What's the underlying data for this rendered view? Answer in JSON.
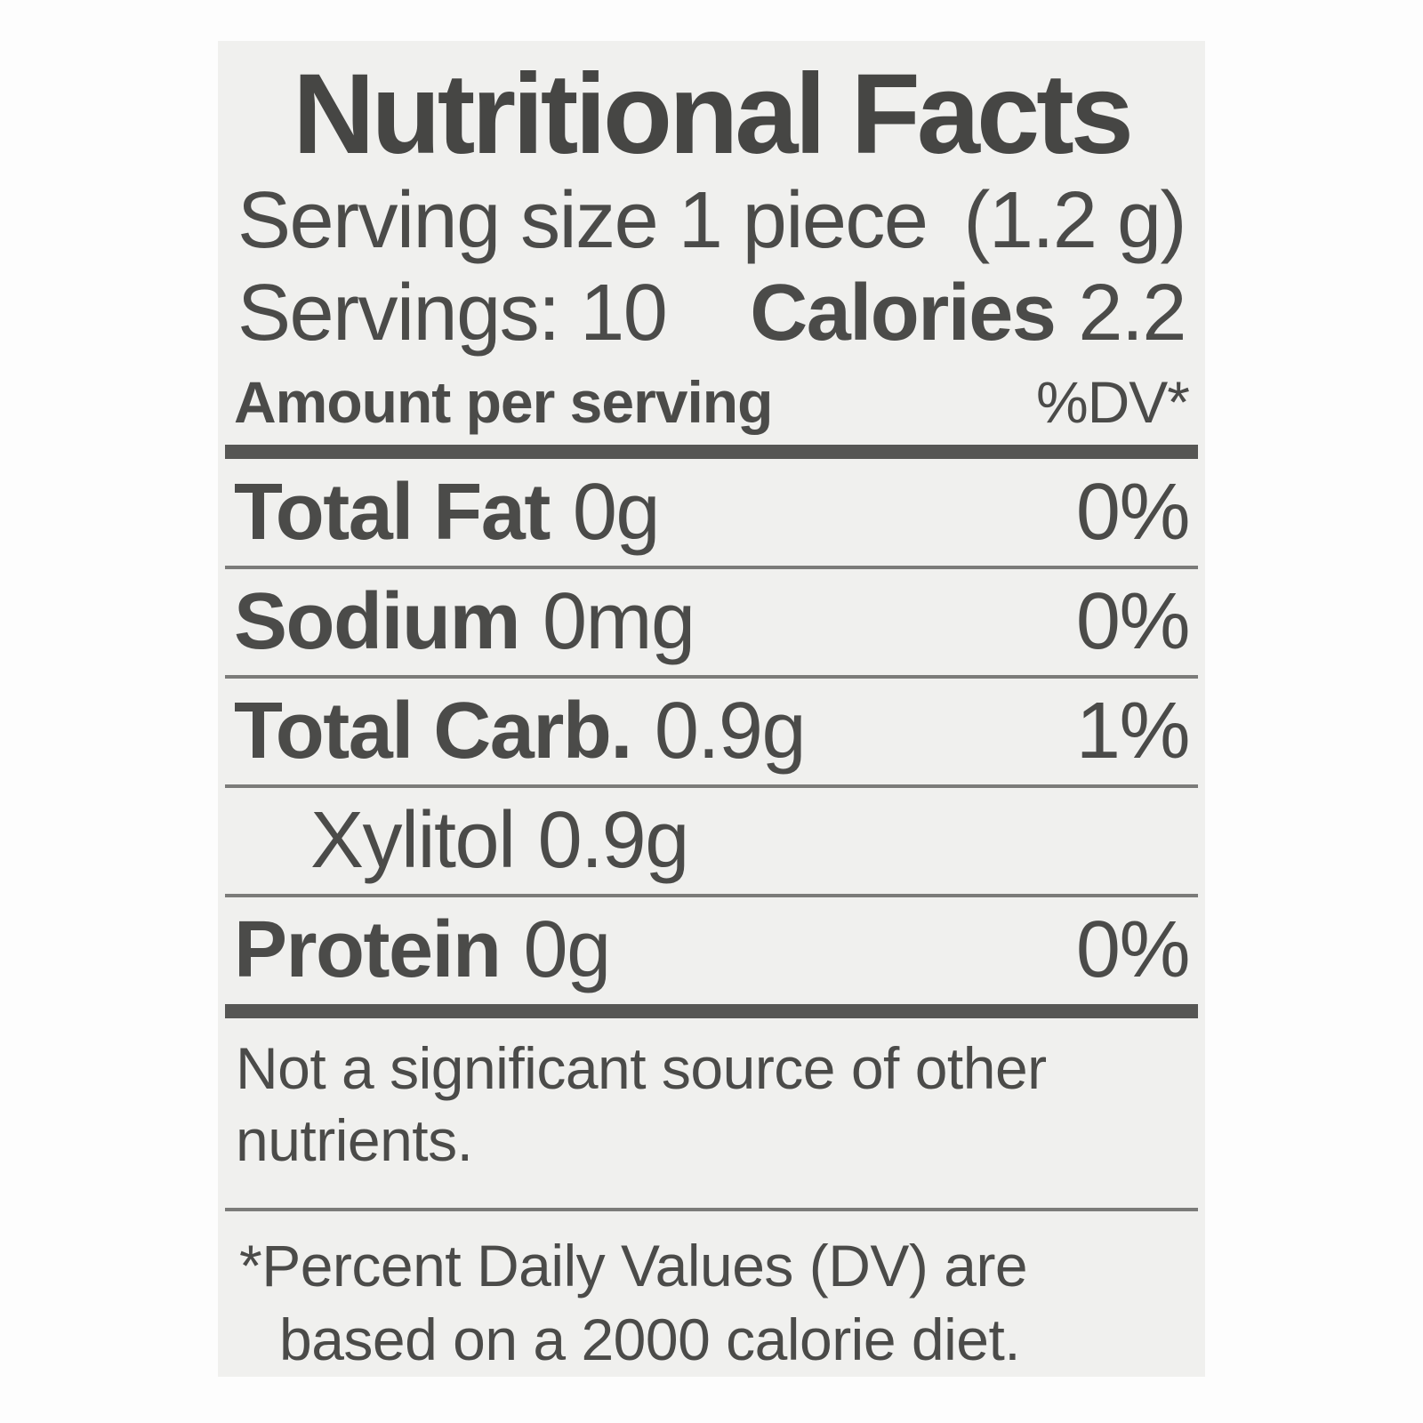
{
  "label": {
    "title": "Nutritional Facts",
    "serving": {
      "size_label": "Serving size 1 piece",
      "size_weight": "(1.2 g)",
      "servings_label": "Servings: 10",
      "calories_label": "Calories",
      "calories_value": "2.2"
    },
    "columns": {
      "left": "Amount per serving",
      "right": "%DV*"
    },
    "rows": [
      {
        "name": "Total Fat",
        "amount": "0g",
        "dv": "0%"
      },
      {
        "name": "Sodium",
        "amount": "0mg",
        "dv": "0%"
      },
      {
        "name": "Total Carb.",
        "amount": "0.9g",
        "dv": "1%"
      },
      {
        "name": "Xylitol",
        "amount": "0.9g",
        "dv": ""
      },
      {
        "name": "Protein",
        "amount": "0g",
        "dv": "0%"
      }
    ],
    "note": "Not a significant source of other nutrients.",
    "footnote": {
      "marker": "*",
      "text": "Percent Daily Values (DV) are based on a 2000 calorie diet."
    },
    "colors": {
      "card_background": "#f0f0ee",
      "text": "#4b4b49",
      "thin_rule": "#7b7b79",
      "thick_rule": "#565654"
    }
  }
}
